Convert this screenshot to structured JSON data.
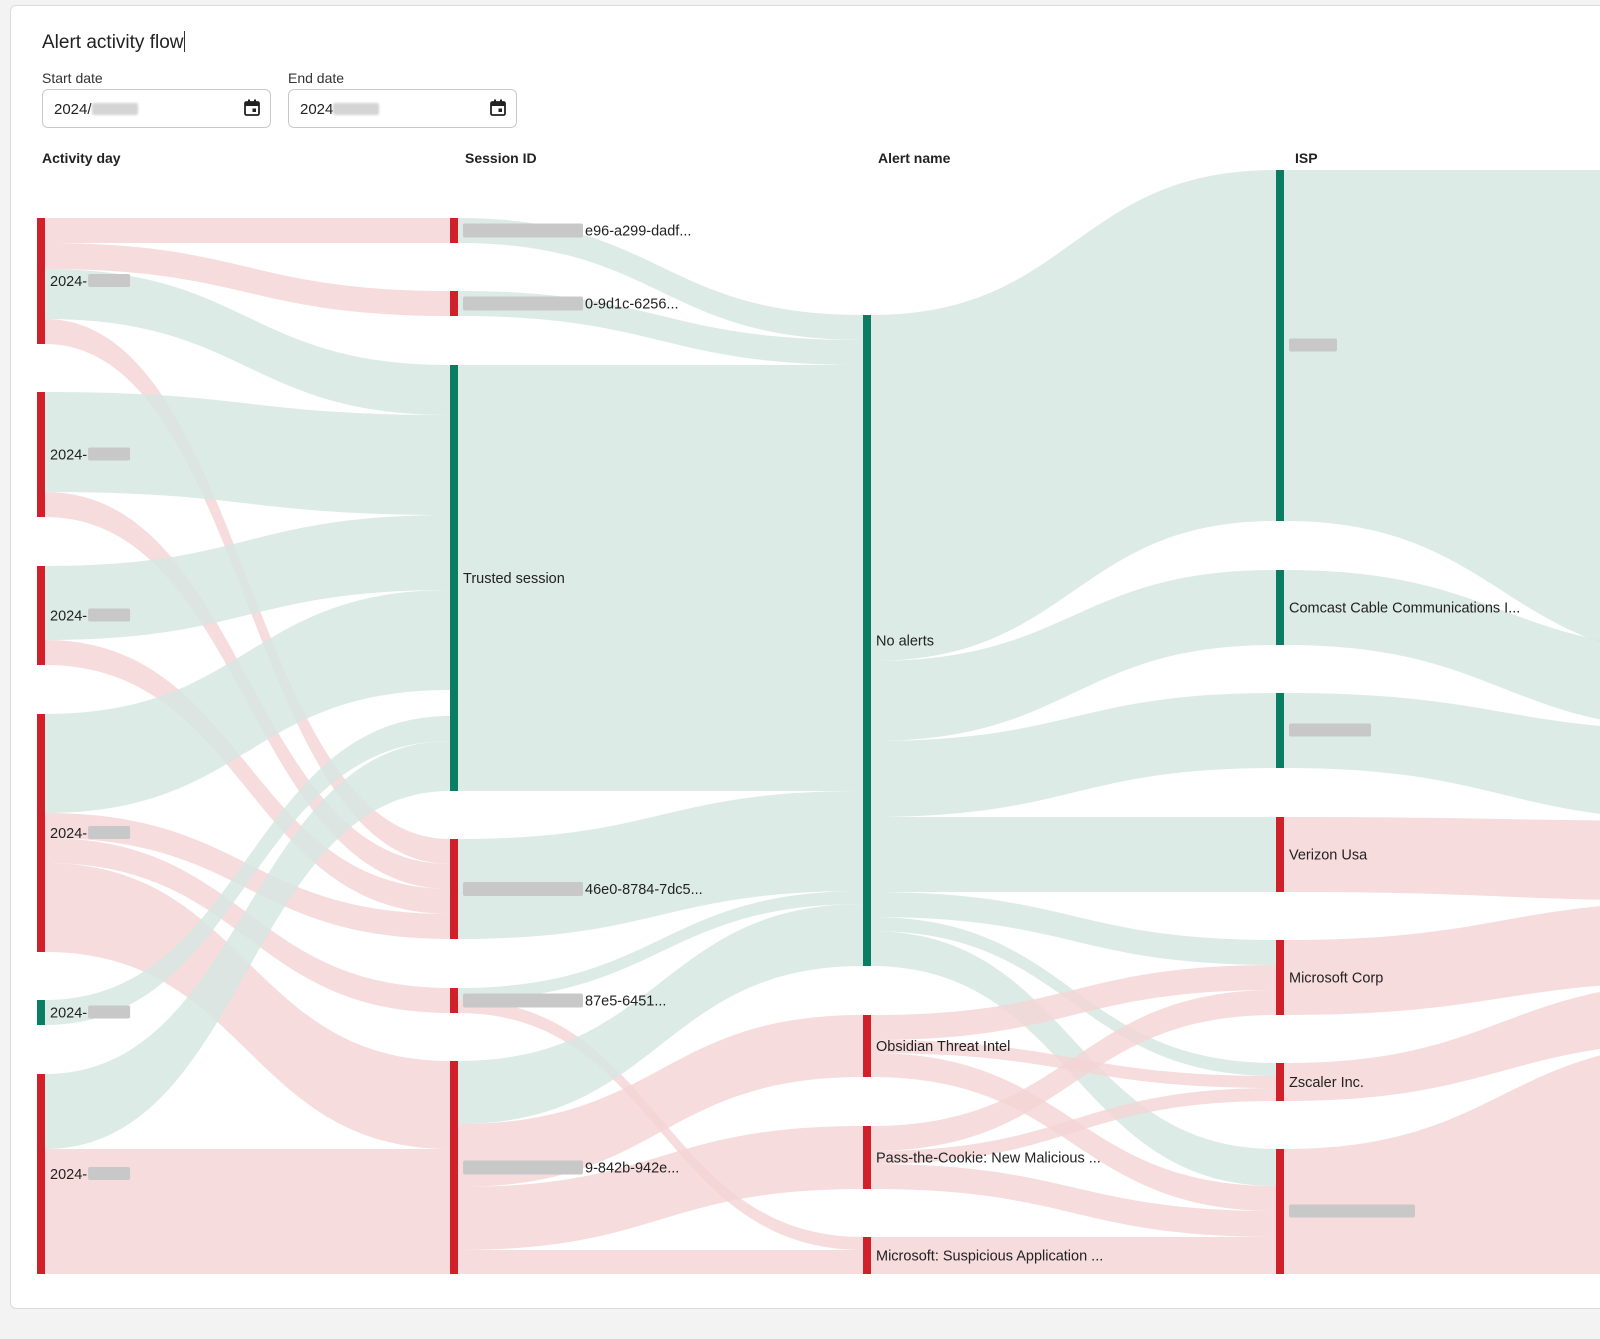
{
  "panel": {
    "title": "Alert activity flow",
    "start_date": {
      "label": "Start date",
      "value": "2024/"
    },
    "end_date": {
      "label": "End date",
      "value": "2024"
    }
  },
  "columns": [
    "Activity day",
    "Session ID",
    "Alert name",
    "ISP"
  ],
  "colors": {
    "trusted": "#0b7d63",
    "alert": "#d0212a",
    "trusted_flow": "#d5e6e2",
    "alert_flow": "#f4d4d5"
  },
  "nodes": {
    "days": [
      {
        "label": "2024-",
        "status": "alert"
      },
      {
        "label": "2024-",
        "status": "alert"
      },
      {
        "label": "2024-",
        "status": "alert"
      },
      {
        "label": "2024-",
        "status": "alert"
      },
      {
        "label": "2024-",
        "status": "trusted"
      },
      {
        "label": "2024-",
        "status": "alert"
      }
    ],
    "sessions": [
      {
        "label": "e96-a299-dadf...",
        "status": "alert"
      },
      {
        "label": "0-9d1c-6256...",
        "status": "alert"
      },
      {
        "label": "Trusted session",
        "status": "trusted"
      },
      {
        "label": "46e0-8784-7dc5...",
        "status": "alert"
      },
      {
        "label": "87e5-6451...",
        "status": "alert"
      },
      {
        "label": "9-842b-942e...",
        "status": "alert"
      }
    ],
    "alerts": [
      {
        "label": "No alerts",
        "status": "trusted"
      },
      {
        "label": "Obsidian Threat Intel",
        "status": "alert"
      },
      {
        "label": "Pass-the-Cookie: New Malicious ...",
        "status": "alert"
      },
      {
        "label": "Microsoft: Suspicious Application ...",
        "status": "alert"
      }
    ],
    "isps": [
      {
        "label": "",
        "status": "trusted"
      },
      {
        "label": "Comcast Cable Communications I...",
        "status": "trusted"
      },
      {
        "label": "",
        "status": "trusted"
      },
      {
        "label": "Verizon Usa",
        "status": "alert"
      },
      {
        "label": "Microsoft Corp",
        "status": "alert"
      },
      {
        "label": "Zscaler Inc.",
        "status": "alert"
      },
      {
        "label": "",
        "status": "alert"
      }
    ]
  }
}
